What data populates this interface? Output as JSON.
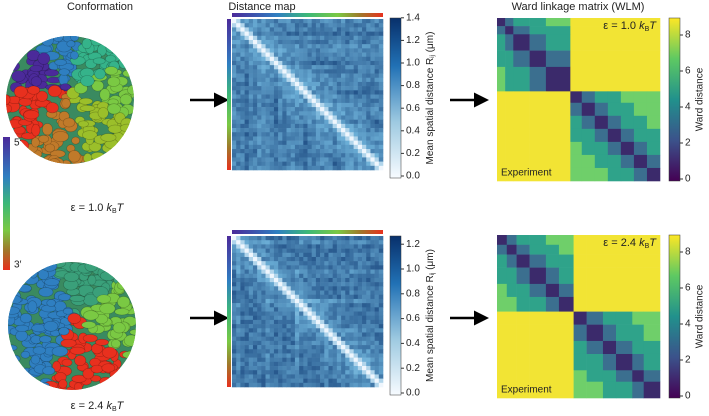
{
  "headers": {
    "conformation": "Conformation",
    "distance_map": "Distance map",
    "wlm": "Ward linkage matrix (WLM)"
  },
  "strand_scale": {
    "top": "5′",
    "bottom": "3′"
  },
  "rows": [
    {
      "epsilon": {
        "text": "ε = 1.0 ",
        "k": "k",
        "sub": "B",
        "T": "T"
      },
      "distance_colorbar": {
        "ticks": [
          "0.0",
          "0.2",
          "0.4",
          "0.6",
          "0.8",
          "1.0",
          "1.2",
          "1.4"
        ],
        "label": {
          "main": "Mean spatial distance R",
          "sub": "ij",
          "unit": " (μm)"
        }
      },
      "wlm_colorbar": {
        "ticks": [
          "0",
          "2",
          "4",
          "6",
          "8"
        ],
        "label": "Ward distance"
      },
      "wlm_inset": "Experiment"
    },
    {
      "epsilon": {
        "text": "ε = 2.4 ",
        "k": "k",
        "sub": "B",
        "T": "T"
      },
      "distance_colorbar": {
        "ticks": [
          "0.0",
          "0.2",
          "0.4",
          "0.6",
          "0.8",
          "1.0",
          "1.2"
        ],
        "label": {
          "main": "Mean spatial distance R",
          "sub": "ij",
          "unit": " (μm)"
        }
      },
      "wlm_colorbar": {
        "ticks": [
          "0",
          "2",
          "4",
          "6",
          "8"
        ],
        "label": "Ward distance"
      },
      "wlm_inset": "Experiment"
    }
  ]
}
